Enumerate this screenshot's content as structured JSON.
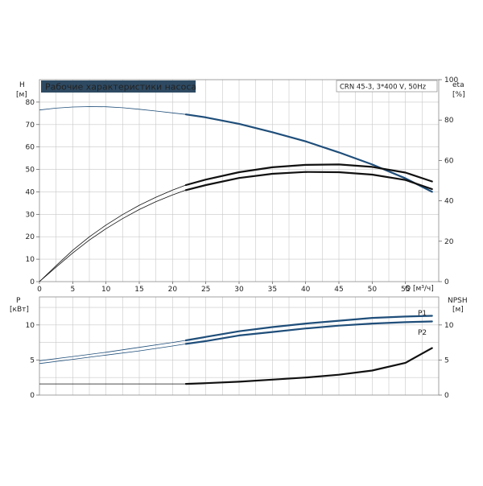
{
  "title": "Рабочие характеристики насоса",
  "model_label": "CRN 45-3, 3*400 V, 50Hz",
  "colors": {
    "blue": "#1f4e7a",
    "black": "#111111",
    "title_bg": "#2e4a62",
    "title_text": "#ffffff",
    "grid": "#c8c8c8"
  },
  "chart_data": [
    {
      "type": "line",
      "name_panel": "head-efficiency",
      "x_label": "Q [м³/ч]",
      "x_ticks": [
        0,
        5,
        10,
        15,
        20,
        25,
        30,
        35,
        40,
        45,
        50,
        55
      ],
      "xlim": [
        0,
        60
      ],
      "left_axis": {
        "label_top": "H",
        "label_bottom": "[м]",
        "ylim": [
          0,
          90
        ],
        "ticks": [
          0,
          10,
          20,
          30,
          40,
          50,
          60,
          70,
          80
        ]
      },
      "right_axis": {
        "label_top": "eta",
        "label_bottom": "[%]",
        "ylim": [
          0,
          100
        ],
        "ticks": [
          0,
          20,
          40,
          60,
          80,
          100
        ]
      },
      "grid": true,
      "series": [
        {
          "id": "head",
          "axis": "left",
          "color": "#1f4e7a",
          "thin_x": [
            0,
            2.5,
            5,
            7.5,
            10,
            12.5,
            15,
            17.5,
            20,
            22
          ],
          "thin_y": [
            76.5,
            77.3,
            77.8,
            78.0,
            77.9,
            77.5,
            76.8,
            76.0,
            75.2,
            74.5
          ],
          "thick_x": [
            22,
            25,
            30,
            35,
            40,
            45,
            50,
            55,
            59
          ],
          "thick_y": [
            74.5,
            73.2,
            70.3,
            66.6,
            62.5,
            57.6,
            52.2,
            46.0,
            40.0
          ]
        },
        {
          "id": "eta-outer",
          "axis": "right",
          "color": "#111111",
          "thin_x": [
            0,
            2.5,
            5,
            7.5,
            10,
            12.5,
            15,
            17.5,
            20,
            22
          ],
          "thin_y": [
            0,
            7.9,
            15.5,
            22.2,
            28.0,
            33.2,
            37.8,
            41.8,
            45.3,
            47.8
          ],
          "thick_x": [
            22,
            25,
            30,
            35,
            40,
            45,
            50,
            55,
            59
          ],
          "thick_y": [
            47.8,
            50.5,
            54.2,
            56.6,
            57.8,
            58.0,
            56.8,
            54.0,
            49.6
          ]
        },
        {
          "id": "eta-inner",
          "axis": "right",
          "color": "#111111",
          "thin_x": [
            0,
            2.5,
            5,
            7.5,
            10,
            12.5,
            15,
            17.5,
            20,
            22
          ],
          "thin_y": [
            0,
            7.2,
            14.2,
            20.6,
            26.2,
            31.2,
            35.7,
            39.6,
            42.9,
            45.3
          ],
          "thick_x": [
            22,
            25,
            30,
            35,
            40,
            45,
            50,
            55,
            59
          ],
          "thick_y": [
            45.3,
            47.8,
            51.3,
            53.4,
            54.3,
            54.2,
            53.0,
            50.3,
            45.8
          ]
        }
      ]
    },
    {
      "type": "line",
      "name_panel": "power-npsh",
      "left_axis": {
        "label_top": "P",
        "label_bottom": "[кВт]",
        "ylim": [
          0,
          14
        ],
        "ticks": [
          0,
          5,
          10
        ]
      },
      "right_axis": {
        "label_top": "NPSH",
        "label_bottom": "[м]",
        "ylim": [
          0,
          14
        ],
        "ticks": [
          0,
          5,
          10
        ]
      },
      "xlim": [
        0,
        60
      ],
      "grid": true,
      "series": [
        {
          "id": "P1",
          "name": "P1",
          "axis": "left",
          "color": "#1f4e7a",
          "thin_x": [
            0,
            5,
            10,
            15,
            20,
            22
          ],
          "thin_y": [
            4.9,
            5.5,
            6.1,
            6.8,
            7.5,
            7.8
          ],
          "thick_x": [
            22,
            25,
            30,
            35,
            40,
            45,
            50,
            55,
            59
          ],
          "thick_y": [
            7.8,
            8.3,
            9.1,
            9.7,
            10.2,
            10.6,
            11.0,
            11.2,
            11.3
          ]
        },
        {
          "id": "P2",
          "name": "P2",
          "axis": "left",
          "color": "#1f4e7a",
          "thin_x": [
            0,
            5,
            10,
            15,
            20,
            22
          ],
          "thin_y": [
            4.5,
            5.1,
            5.7,
            6.3,
            7.0,
            7.3
          ],
          "thick_x": [
            22,
            25,
            30,
            35,
            40,
            45,
            50,
            55,
            59
          ],
          "thick_y": [
            7.3,
            7.7,
            8.5,
            9.0,
            9.5,
            9.9,
            10.2,
            10.4,
            10.5
          ]
        },
        {
          "id": "npsh",
          "axis": "right",
          "color": "#111111",
          "thin_x": [
            0,
            5,
            10,
            15,
            20,
            22
          ],
          "thin_y": [
            1.6,
            1.6,
            1.6,
            1.6,
            1.6,
            1.6
          ],
          "thick_x": [
            22,
            25,
            30,
            35,
            40,
            45,
            50,
            55,
            59
          ],
          "thick_y": [
            1.6,
            1.7,
            1.9,
            2.2,
            2.5,
            2.9,
            3.5,
            4.6,
            6.7
          ]
        }
      ]
    }
  ]
}
